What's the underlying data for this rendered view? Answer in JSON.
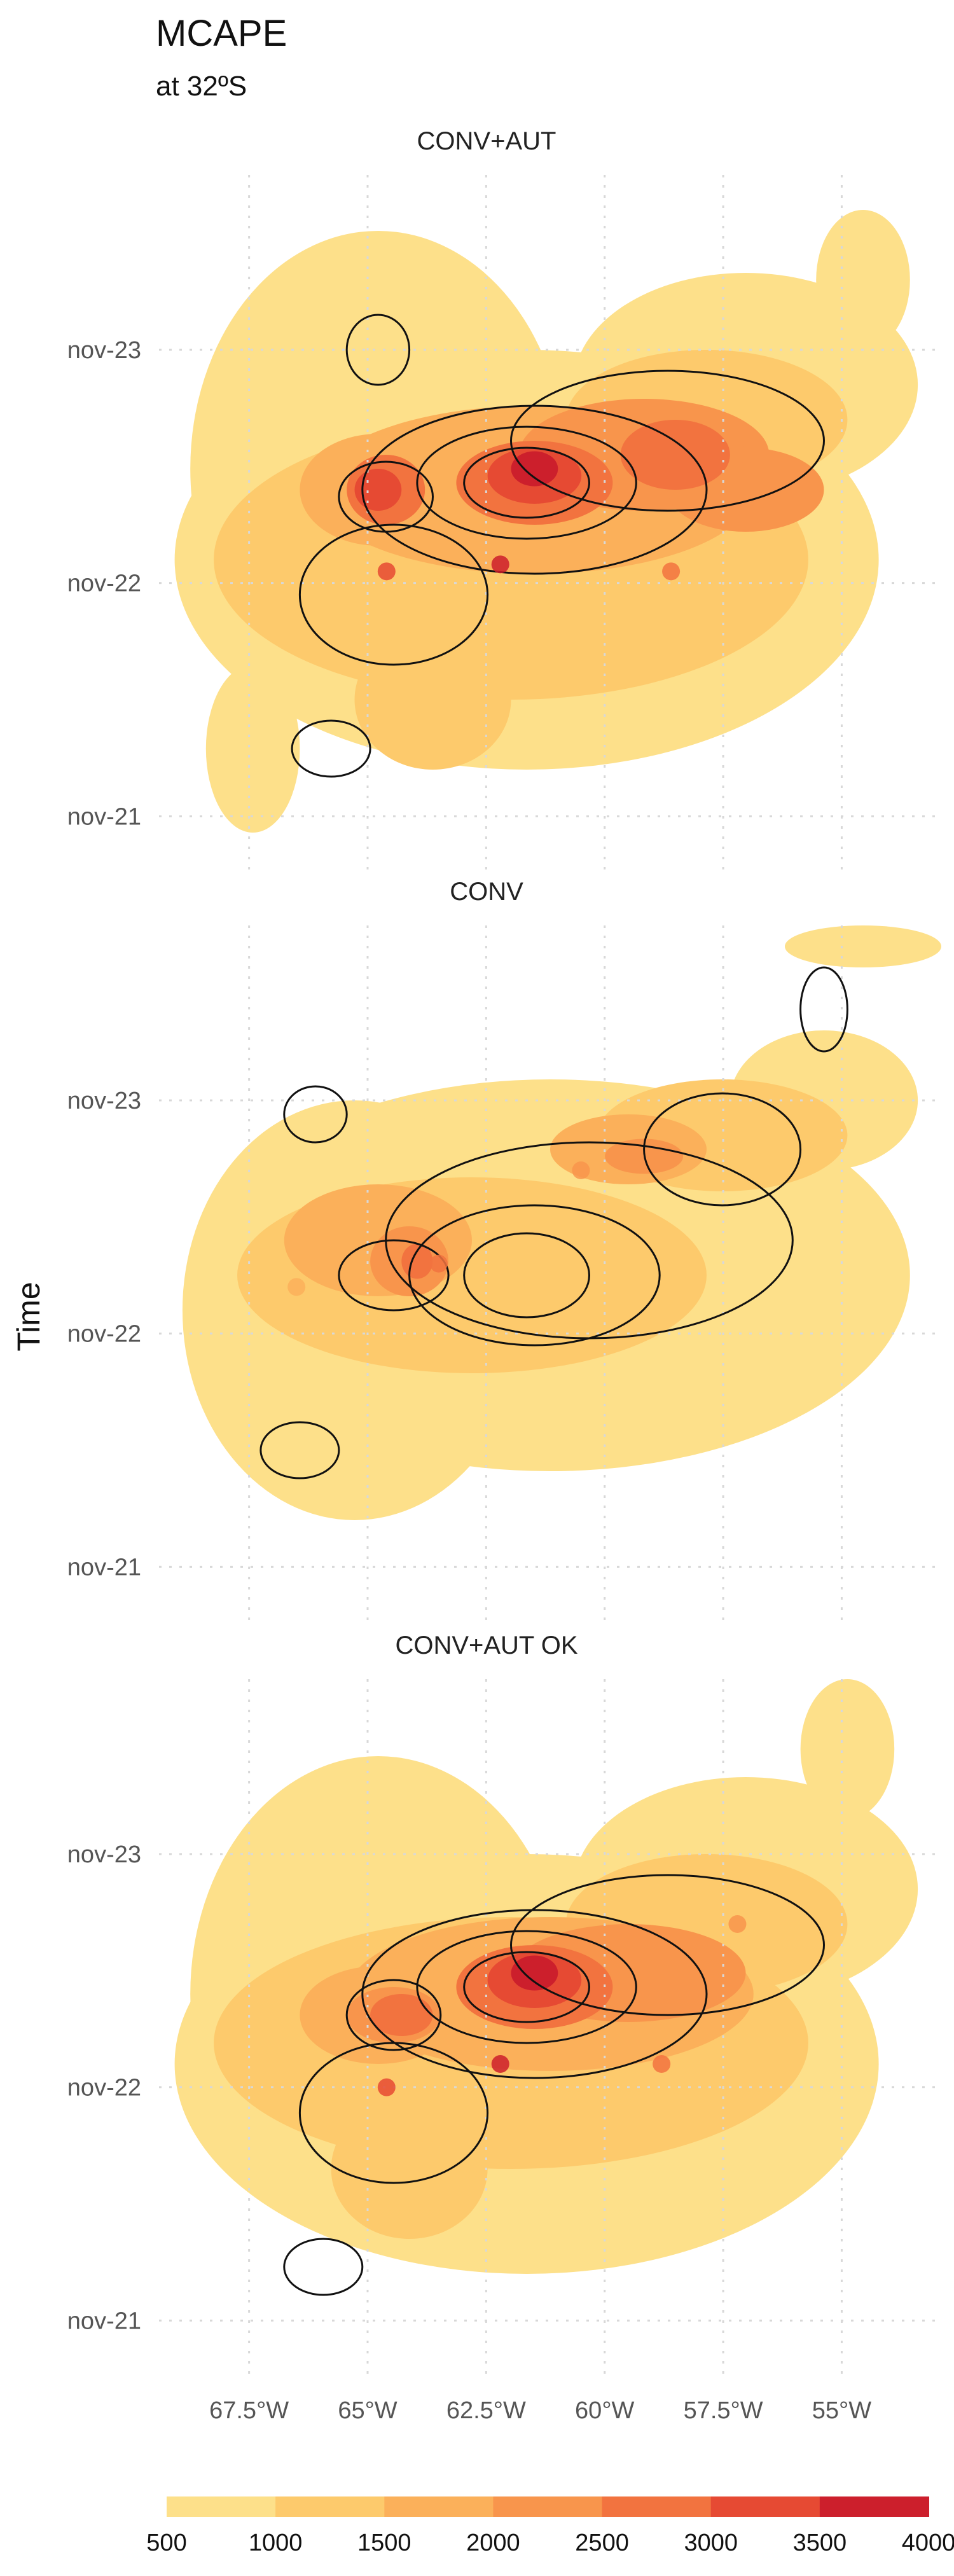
{
  "figure": {
    "title": "MCAPE",
    "subtitle": "at 32ºS",
    "ylabel": "Time"
  },
  "chart_data": {
    "type": "heatmap",
    "xaxis": {
      "ticks": [
        -67.5,
        -65,
        -62.5,
        -60,
        -57.5,
        -55
      ],
      "tick_labels": [
        "67.5°W",
        "65°W",
        "62.5°W",
        "60°W",
        "57.5°W",
        "55°W"
      ],
      "range": [
        -69.4,
        -52.9
      ]
    },
    "yaxis": {
      "ticks": [
        21,
        22,
        23
      ],
      "tick_labels": [
        "nov-21",
        "nov-22",
        "nov-23"
      ],
      "range": [
        20.75,
        23.75
      ]
    },
    "grid": true,
    "colorbar": {
      "levels": [
        500,
        1000,
        1500,
        2000,
        2500,
        3000,
        3500,
        4000
      ],
      "labels": [
        "500",
        "1000",
        "1500",
        "2000",
        "2500",
        "3000",
        "3500",
        "4000"
      ],
      "colors": [
        "#fde08a",
        "#fdca6c",
        "#fbb05a",
        "#f8954c",
        "#f2733f",
        "#e64a33",
        "#cc1f2c"
      ],
      "position": "bottom"
    },
    "panels": [
      {
        "title": "CONV+AUT",
        "field": {
          "centers": [
            -63.3,
            22.1
          ],
          "peak": 3900
        },
        "core_fields": [
          {
            "lon": -62.2,
            "t": 22.08,
            "value": 3900
          },
          {
            "lon": -64.6,
            "t": 22.05,
            "value": 3100
          },
          {
            "lon": -58.6,
            "t": 22.05,
            "value": 2800
          },
          {
            "lon": -57.0,
            "t": 22.55,
            "value": 2300
          }
        ]
      },
      {
        "title": "CONV",
        "field": {
          "centers": [
            -63.8,
            22.0
          ],
          "peak": 2700
        },
        "core_fields": [
          {
            "lon": -63.5,
            "t": 22.3,
            "value": 2700
          },
          {
            "lon": -60.5,
            "t": 22.7,
            "value": 2200
          },
          {
            "lon": -66.5,
            "t": 22.2,
            "value": 1800
          }
        ]
      },
      {
        "title": "CONV+AUT OK",
        "field": {
          "centers": [
            -63.3,
            22.1
          ],
          "peak": 3900
        },
        "core_fields": [
          {
            "lon": -62.2,
            "t": 22.1,
            "value": 3900
          },
          {
            "lon": -64.6,
            "t": 22.0,
            "value": 3000
          },
          {
            "lon": -58.8,
            "t": 22.1,
            "value": 2500
          },
          {
            "lon": -57.2,
            "t": 22.7,
            "value": 2200
          }
        ]
      }
    ]
  }
}
